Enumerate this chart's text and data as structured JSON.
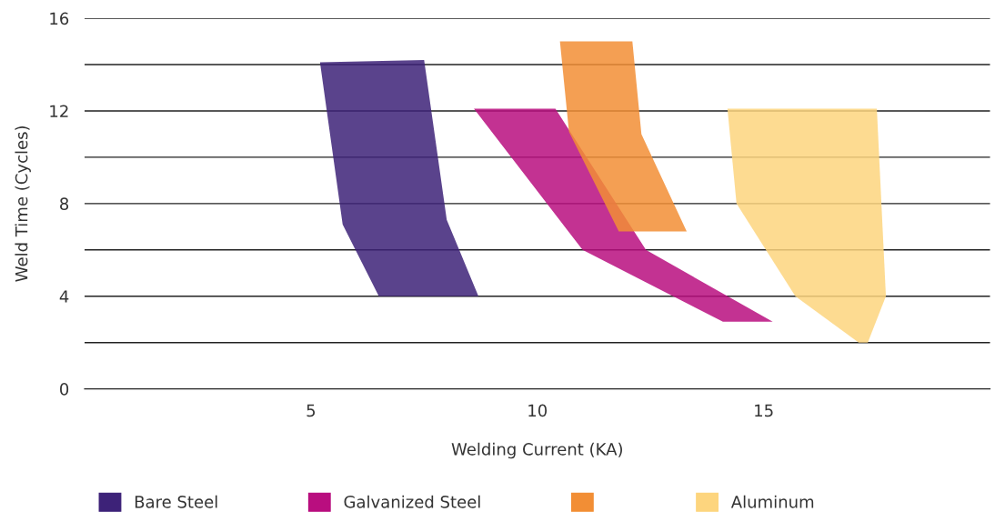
{
  "chart_data": {
    "type": "area",
    "xlabel": "Welding Current (KA)",
    "ylabel": "Weld Time (Cycles)",
    "xlim": [
      0,
      20
    ],
    "xticks": [
      5,
      10,
      15
    ],
    "ylim": [
      0,
      16
    ],
    "yticks": [
      0,
      {
        "value": 2,
        "label": null
      },
      4,
      {
        "value": 6,
        "label": null
      },
      8,
      {
        "value": 10,
        "label": null
      },
      12,
      {
        "value": 14,
        "label": null
      },
      16
    ],
    "grid": "y",
    "legend": "bottom",
    "series": [
      {
        "name": "Bare Steel",
        "color": "#3d2278",
        "x": [
          5.2,
          7.5,
          8.0,
          8.7,
          6.5,
          5.7
        ],
        "values": [
          14.1,
          14.2,
          7.3,
          4.0,
          4.0,
          7.1
        ]
      },
      {
        "name": "Galvanized Steel",
        "color": "#b90e7f",
        "x": [
          8.6,
          10.4,
          12.4,
          15.2,
          14.1,
          11.0
        ],
        "values": [
          12.1,
          12.1,
          6.0,
          2.9,
          2.9,
          6.0
        ]
      },
      {
        "color": "#f28e35",
        "x": [
          10.5,
          12.1,
          12.3,
          13.3,
          11.8,
          10.7
        ],
        "values": [
          15.0,
          15.0,
          11.0,
          6.8,
          6.8,
          11.1
        ]
      },
      {
        "name": "Aluminum",
        "color": "#fdd57e",
        "x": [
          14.2,
          17.5,
          17.7,
          17.3,
          17.1,
          15.7,
          14.4
        ],
        "values": [
          12.1,
          12.1,
          4.0,
          2.0,
          2.0,
          4.0,
          8.0
        ]
      }
    ]
  }
}
